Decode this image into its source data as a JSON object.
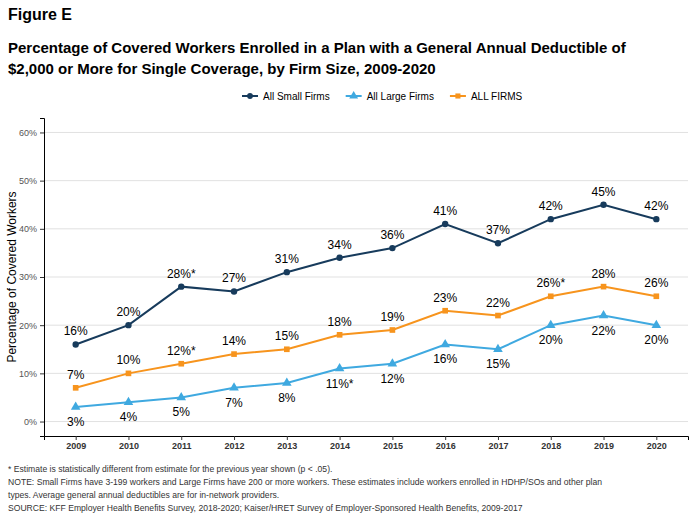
{
  "chart_data": {
    "type": "line",
    "title": "Figure E",
    "subtitle": "Percentage of Covered Workers Enrolled in a Plan with a General Annual Deductible of\n$2,000 or More for Single Coverage, by Firm Size, 2009-2020",
    "y_label": "Percentage of Covered Workers",
    "categories": [
      "2009",
      "2010",
      "2011",
      "2012",
      "2013",
      "2014",
      "2015",
      "2016",
      "2017",
      "2018",
      "2019",
      "2020"
    ],
    "series": [
      {
        "name": "All Small Firms",
        "color": "#173b5c",
        "marker": "circle",
        "values": [
          16,
          20,
          28,
          27,
          31,
          34,
          36,
          41,
          37,
          42,
          45,
          42
        ],
        "value_labels": [
          "16%",
          "20%",
          "28%*",
          "27%",
          "31%",
          "34%",
          "36%",
          "41%",
          "37%",
          "42%",
          "45%",
          "42%"
        ]
      },
      {
        "name": "All Large Firms",
        "color": "#3fa9e0",
        "marker": "triangle",
        "values": [
          3,
          4,
          5,
          7,
          8,
          11,
          12,
          16,
          15,
          20,
          22,
          20
        ],
        "value_labels": [
          "3%",
          "4%",
          "5%",
          "7%",
          "8%",
          "11%*",
          "12%",
          "16%",
          "15%",
          "20%",
          "22%",
          "20%"
        ]
      },
      {
        "name": "ALL FIRMS",
        "color": "#f7941d",
        "marker": "square",
        "values": [
          7,
          10,
          12,
          14,
          15,
          18,
          19,
          23,
          22,
          26,
          28,
          26
        ],
        "value_labels": [
          "7%",
          "10%",
          "12%*",
          "14%",
          "15%",
          "18%",
          "19%",
          "23%",
          "22%",
          "26%*",
          "28%",
          "26%"
        ]
      }
    ],
    "ylim": [
      -3,
      63
    ],
    "yticks": [
      {
        "value": 0,
        "label": "0%"
      },
      {
        "value": 10,
        "label": "10%"
      },
      {
        "value": 20,
        "label": "20%"
      },
      {
        "value": 30,
        "label": "30%"
      },
      {
        "value": 40,
        "label": "40%"
      },
      {
        "value": 50,
        "label": "50%"
      },
      {
        "value": 60,
        "label": "60%"
      }
    ],
    "grid": true,
    "legend": "top",
    "data_labels": true,
    "notes": [
      "* Estimate is statistically different from estimate for the previous year shown (p < .05).",
      "NOTE: Small Firms have 3-199 workers and Large Firms have 200 or more workers. These estimates include workers enrolled in HDHP/SOs and other plan",
      "types. Average general annual deductibles are for in-network providers.",
      "SOURCE: KFF Employer Health Benefits Survey, 2018-2020; Kaiser/HRET Survey of Employer-Sponsored Health Benefits, 2009-2017"
    ]
  }
}
